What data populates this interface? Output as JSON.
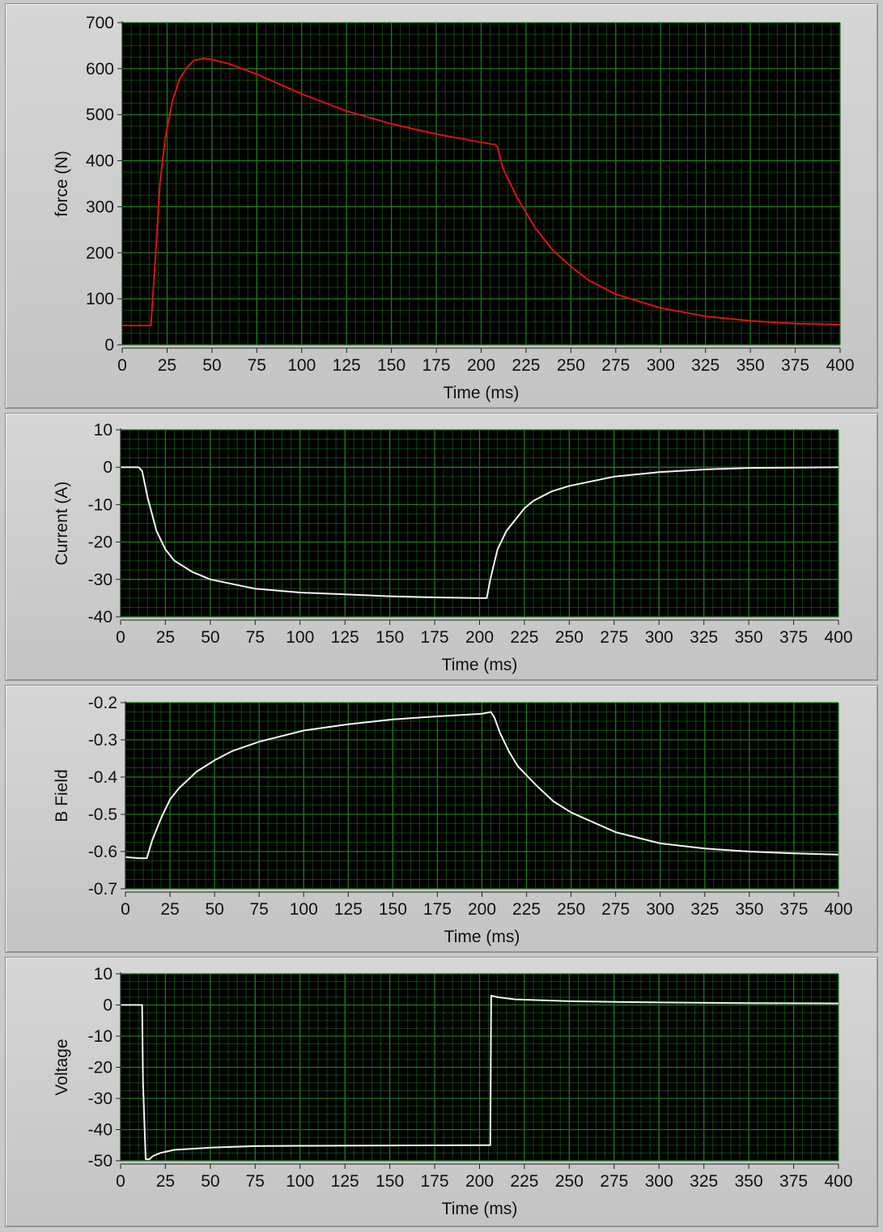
{
  "colors": {
    "plot_bg": "#000000",
    "grid": "#1f7a1f",
    "force_line": "#e01010",
    "signal_line": "#f4f4f4"
  },
  "chart_data": [
    {
      "type": "line",
      "title": "",
      "xlabel": "Time (ms)",
      "ylabel": "force (N)",
      "xlim": [
        0,
        400
      ],
      "ylim": [
        0,
        700
      ],
      "xticks": [
        0,
        25,
        50,
        75,
        100,
        125,
        150,
        175,
        200,
        225,
        250,
        275,
        300,
        325,
        350,
        375,
        400
      ],
      "yticks": [
        0,
        100,
        200,
        300,
        400,
        500,
        600,
        700
      ],
      "grid": true,
      "series": [
        {
          "color": "#e01010",
          "x": [
            0,
            10,
            16,
            17,
            19,
            21,
            24,
            28,
            32,
            36,
            40,
            45,
            50,
            60,
            75,
            100,
            125,
            150,
            175,
            200,
            208,
            209,
            212,
            220,
            230,
            240,
            250,
            260,
            275,
            300,
            325,
            350,
            375,
            400
          ],
          "y": [
            42,
            42,
            42,
            100,
            220,
            350,
            450,
            530,
            578,
            602,
            618,
            622,
            620,
            610,
            588,
            545,
            508,
            480,
            458,
            440,
            435,
            430,
            385,
            320,
            255,
            205,
            170,
            140,
            110,
            80,
            62,
            52,
            46,
            44
          ]
        }
      ]
    },
    {
      "type": "line",
      "title": "",
      "xlabel": "Time (ms)",
      "ylabel": "Current (A)",
      "xlim": [
        0,
        400
      ],
      "ylim": [
        -40,
        10
      ],
      "xticks": [
        0,
        25,
        50,
        75,
        100,
        125,
        150,
        175,
        200,
        225,
        250,
        275,
        300,
        325,
        350,
        375,
        400
      ],
      "yticks": [
        10,
        0,
        -10,
        -20,
        -30,
        -40
      ],
      "grid": true,
      "series": [
        {
          "color": "#f4f4f4",
          "x": [
            0,
            10,
            12,
            15,
            20,
            25,
            30,
            40,
            50,
            75,
            100,
            125,
            150,
            175,
            200,
            204,
            206,
            210,
            215,
            220,
            225,
            230,
            240,
            250,
            275,
            300,
            325,
            350,
            400
          ],
          "y": [
            0,
            0,
            -1,
            -8,
            -17,
            -22,
            -25,
            -28,
            -30,
            -32.5,
            -33.5,
            -34,
            -34.5,
            -34.8,
            -35,
            -35,
            -30,
            -22,
            -17,
            -14,
            -11,
            -9,
            -6.5,
            -5,
            -2.5,
            -1.3,
            -0.6,
            -0.2,
            0
          ]
        }
      ]
    },
    {
      "type": "line",
      "title": "",
      "xlabel": "Time (ms)",
      "ylabel": "B Field",
      "xlim": [
        0,
        400
      ],
      "ylim": [
        -0.7,
        -0.2
      ],
      "xticks": [
        0,
        25,
        50,
        75,
        100,
        125,
        150,
        175,
        200,
        225,
        250,
        275,
        300,
        325,
        350,
        375,
        400
      ],
      "yticks": [
        -0.2,
        -0.3,
        -0.4,
        -0.5,
        -0.6,
        -0.7
      ],
      "grid": true,
      "series": [
        {
          "color": "#f4f4f4",
          "x": [
            0,
            8,
            12,
            15,
            20,
            25,
            30,
            40,
            50,
            60,
            75,
            100,
            125,
            150,
            175,
            200,
            205,
            207,
            210,
            215,
            220,
            230,
            240,
            250,
            275,
            300,
            325,
            350,
            375,
            400
          ],
          "y": [
            -0.615,
            -0.618,
            -0.618,
            -0.57,
            -0.51,
            -0.46,
            -0.43,
            -0.385,
            -0.355,
            -0.33,
            -0.305,
            -0.275,
            -0.258,
            -0.245,
            -0.237,
            -0.23,
            -0.225,
            -0.24,
            -0.28,
            -0.33,
            -0.37,
            -0.42,
            -0.465,
            -0.495,
            -0.548,
            -0.578,
            -0.592,
            -0.6,
            -0.605,
            -0.608
          ]
        }
      ]
    },
    {
      "type": "line",
      "title": "",
      "xlabel": "Time (ms)",
      "ylabel": "Voltage",
      "xlim": [
        0,
        400
      ],
      "ylim": [
        -50,
        10
      ],
      "xticks": [
        0,
        25,
        50,
        75,
        100,
        125,
        150,
        175,
        200,
        225,
        250,
        275,
        300,
        325,
        350,
        375,
        400
      ],
      "yticks": [
        10,
        0,
        -10,
        -20,
        -30,
        -40,
        -50
      ],
      "grid": true,
      "series": [
        {
          "color": "#f4f4f4",
          "x": [
            0,
            12,
            12.5,
            14,
            16,
            18,
            22,
            30,
            50,
            75,
            100,
            150,
            200,
            206,
            206.5,
            210,
            220,
            250,
            300,
            350,
            400
          ],
          "y": [
            0,
            0,
            -25,
            -49.5,
            -49.5,
            -48.5,
            -47.5,
            -46.5,
            -45.8,
            -45.3,
            -45.2,
            -45.1,
            -45,
            -45,
            3,
            2.5,
            1.8,
            1.2,
            0.8,
            0.6,
            0.5
          ]
        }
      ]
    }
  ]
}
